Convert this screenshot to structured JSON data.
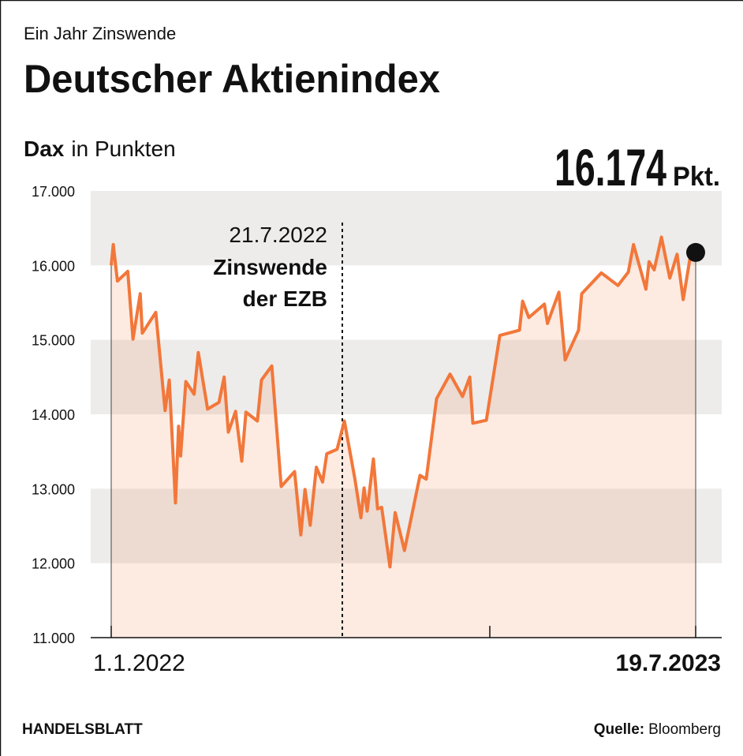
{
  "chart_data": {
    "type": "line",
    "subtitle": "Ein Jahr Zinswende",
    "title": "Deutscher Aktienindex",
    "y_label": {
      "name": "Dax",
      "unit": "in Punkten"
    },
    "value_unit": "Pkt.",
    "color": "#f2773a",
    "x": [
      "1.1.2022",
      "3.1.2022",
      "7.1.2022",
      "17.1.2022",
      "22.1.2022",
      "29.1.2022",
      "31.1.2022",
      "13.2.2022",
      "22.2.2022",
      "26.2.2022",
      "4.3.2022",
      "7.3.2022",
      "9.3.2022",
      "14.3.2022",
      "22.3.2022",
      "26.3.2022",
      "4.4.2022",
      "15.4.2022",
      "20.4.2022",
      "24.4.2022",
      "1.5.2022",
      "7.5.2022",
      "11.5.2022",
      "22.5.2022",
      "26.5.2022",
      "5.6.2022",
      "14.6.2022",
      "27.6.2022",
      "3.7.2022",
      "7.7.2022",
      "12.7.2022",
      "18.7.2022",
      "24.7.2022",
      "28.7.2022",
      "7.8.2022",
      "14.8.2022",
      "24.8.2022",
      "30.8.2022",
      "2.9.2022",
      "5.9.2022",
      "11.9.2022",
      "15.9.2022",
      "19.9.2022",
      "27.9.2022",
      "2.10.2022",
      "11.10.2022",
      "26.10.2022",
      "1.11.2022",
      "11.11.2022",
      "24.11.2022",
      "6.12.2022",
      "13.12.2022",
      "16.12.2022",
      "29.12.2022",
      "11.1.2023",
      "30.1.2023",
      "2.2.2023",
      "8.2.2023",
      "23.2.2023",
      "26.2.2023",
      "9.3.2023",
      "15.3.2023",
      "28.3.2023",
      "31.3.2023",
      "19.4.2023",
      "5.5.2023",
      "15.5.2023",
      "20.5.2023",
      "1.6.2023",
      "4.6.2023",
      "9.6.2023",
      "16.6.2023",
      "24.6.2023",
      "1.7.2023",
      "7.7.2023",
      "15.7.2023",
      "19.7.2023"
    ],
    "values": [
      16000,
      16280,
      15790,
      15920,
      15010,
      15620,
      15090,
      15370,
      14050,
      14460,
      12810,
      13840,
      13440,
      14440,
      14270,
      14830,
      14070,
      14160,
      14500,
      13760,
      14040,
      13370,
      14030,
      13910,
      14460,
      14650,
      13030,
      13230,
      12380,
      12990,
      12510,
      13290,
      13090,
      13470,
      13530,
      13910,
      13140,
      12610,
      13010,
      12700,
      13400,
      12730,
      12750,
      11950,
      12680,
      12170,
      13180,
      13130,
      14210,
      14540,
      14240,
      14500,
      13880,
      13920,
      15060,
      15130,
      15520,
      15300,
      15480,
      15220,
      15640,
      14730,
      15130,
      15620,
      15900,
      15730,
      15910,
      16280,
      15680,
      16050,
      15940,
      16380,
      15830,
      16150,
      15540,
      16220,
      16174
    ],
    "value_labels": [
      null,
      null,
      null,
      null,
      null,
      null,
      null,
      null,
      null,
      null,
      null,
      null,
      null,
      null,
      null,
      null,
      null,
      null,
      null,
      null,
      null,
      null,
      null,
      null,
      null,
      null,
      null,
      null,
      null,
      null,
      null,
      null,
      null,
      null,
      null,
      null,
      null,
      null,
      null,
      null,
      null,
      null,
      null,
      null,
      null,
      null,
      null,
      null,
      null,
      null,
      null,
      null,
      null,
      null,
      null,
      null,
      null,
      null,
      null,
      null,
      null,
      null,
      null,
      null,
      null,
      null,
      null,
      null,
      null,
      null,
      null,
      null,
      null,
      null,
      null,
      null,
      "16.174"
    ],
    "xlim": [
      "1.1.2022",
      "19.7.2023"
    ],
    "xticks": [
      "1.1.2022",
      "19.7.2023"
    ],
    "ylim": [
      11000,
      17000
    ],
    "yticks": [
      {
        "value": 11000,
        "label": "11.000"
      },
      {
        "value": 12000,
        "label": "12.000"
      },
      {
        "value": 13000,
        "label": "13.000"
      },
      {
        "value": 14000,
        "label": "14.000"
      },
      {
        "value": 15000,
        "label": "15.000"
      },
      {
        "value": 16000,
        "label": "16.000"
      },
      {
        "value": 17000,
        "label": "17.000"
      }
    ],
    "annotation": {
      "date": "21.7.2022",
      "lines": [
        "Zinswende",
        "der EZB"
      ]
    },
    "footer": {
      "publisher": "HANDELSBLATT",
      "source_label": "Quelle:",
      "source": "Bloomberg"
    }
  }
}
